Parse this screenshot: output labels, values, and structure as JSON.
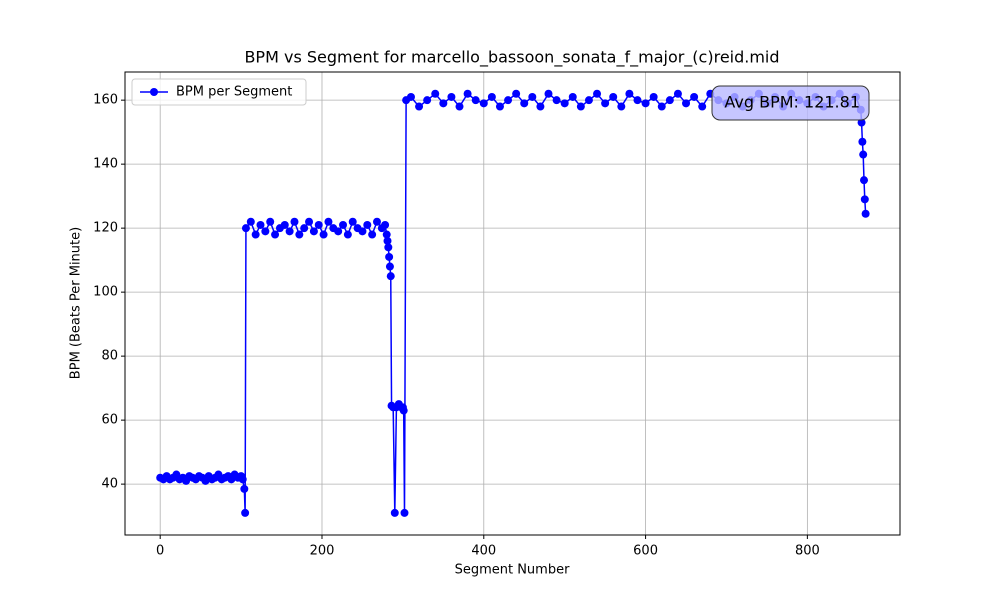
{
  "chart_data": {
    "type": "line",
    "title": "BPM vs Segment for marcello_bassoon_sonata_f_major_(c)reid.mid",
    "x_label": "Segment Number",
    "y_label": "BPM (Beats Per Minute)",
    "annotation": "Avg BPM: 121.81",
    "xlim": [
      -43.5,
      914.5
    ],
    "ylim": [
      24.1,
      168.8
    ],
    "xticks": [
      0,
      200,
      400,
      600,
      800
    ],
    "yticks": [
      40,
      60,
      80,
      100,
      120,
      140,
      160
    ],
    "grid": true,
    "legend": "upper left",
    "x": [
      0,
      4,
      8,
      12,
      16,
      20,
      24,
      28,
      32,
      36,
      40,
      44,
      48,
      52,
      56,
      60,
      64,
      68,
      72,
      76,
      80,
      84,
      88,
      92,
      96,
      100,
      102,
      104,
      105,
      106,
      112,
      118,
      124,
      130,
      136,
      142,
      148,
      154,
      160,
      166,
      172,
      178,
      184,
      190,
      196,
      202,
      208,
      214,
      220,
      226,
      232,
      238,
      244,
      250,
      256,
      262,
      268,
      274,
      278,
      280,
      281,
      282,
      283,
      284,
      285,
      286,
      288,
      290,
      292,
      295,
      298,
      300,
      301,
      302,
      304,
      310,
      320,
      330,
      340,
      350,
      360,
      370,
      380,
      390,
      400,
      410,
      420,
      430,
      440,
      450,
      460,
      470,
      480,
      490,
      500,
      510,
      520,
      530,
      540,
      550,
      560,
      570,
      580,
      590,
      600,
      610,
      620,
      630,
      640,
      650,
      660,
      670,
      680,
      690,
      700,
      710,
      720,
      730,
      740,
      750,
      760,
      770,
      780,
      790,
      800,
      810,
      820,
      830,
      840,
      850,
      860,
      866,
      867,
      868,
      869,
      870,
      871,
      872
    ],
    "series": [
      {
        "name": "BPM per Segment",
        "color": "#0000ff",
        "values": [
          42,
          41.5,
          42.5,
          41.5,
          42,
          43,
          41.5,
          42,
          41,
          42.5,
          42,
          41.5,
          42.5,
          42,
          41,
          42.5,
          41.5,
          42,
          43,
          41.5,
          42,
          42.5,
          41.5,
          43,
          42,
          42.5,
          41.5,
          38.5,
          31,
          120,
          122,
          118,
          121,
          119,
          122,
          118,
          120,
          121,
          119,
          122,
          118,
          120,
          122,
          119,
          121,
          118,
          122,
          120,
          119,
          121,
          118,
          122,
          120,
          119,
          121,
          118,
          122,
          120,
          121,
          118,
          116,
          114,
          111,
          108,
          105,
          64.5,
          64,
          31,
          64,
          65,
          64,
          64,
          63,
          31,
          160,
          161,
          158,
          160,
          162,
          159,
          161,
          158,
          162,
          160,
          159,
          161,
          158,
          160,
          162,
          159,
          161,
          158,
          162,
          160,
          159,
          161,
          158,
          160,
          162,
          159,
          161,
          158,
          162,
          160,
          159,
          161,
          158,
          160,
          162,
          159,
          161,
          158,
          162,
          160,
          159,
          161,
          158,
          160,
          162,
          159,
          161,
          158,
          162,
          160,
          159,
          161,
          158,
          160,
          162,
          159,
          161,
          157,
          153,
          147,
          143,
          135,
          129,
          124.5
        ]
      }
    ]
  }
}
